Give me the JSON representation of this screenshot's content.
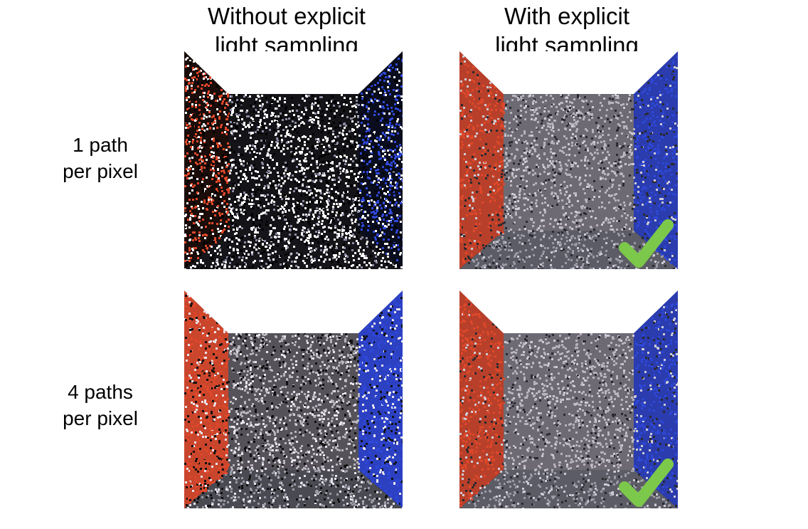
{
  "columns": [
    {
      "line1": "Without explicit",
      "line2": "light sampling"
    },
    {
      "line1": "With explicit",
      "line2": "light sampling"
    }
  ],
  "rows": [
    {
      "line1": "1 path",
      "line2": "per pixel"
    },
    {
      "line1": "4 paths",
      "line2": "per pixel"
    }
  ],
  "panels": [
    {
      "row": 0,
      "col": 0,
      "checkmark": false
    },
    {
      "row": 0,
      "col": 1,
      "checkmark": true
    },
    {
      "row": 1,
      "col": 0,
      "checkmark": false
    },
    {
      "row": 1,
      "col": 1,
      "checkmark": true
    }
  ],
  "colors": {
    "left_wall": "#e0482a",
    "right_wall": "#2f48d8",
    "checkmark": "#7cc84a",
    "ceiling": "#ffffff"
  }
}
